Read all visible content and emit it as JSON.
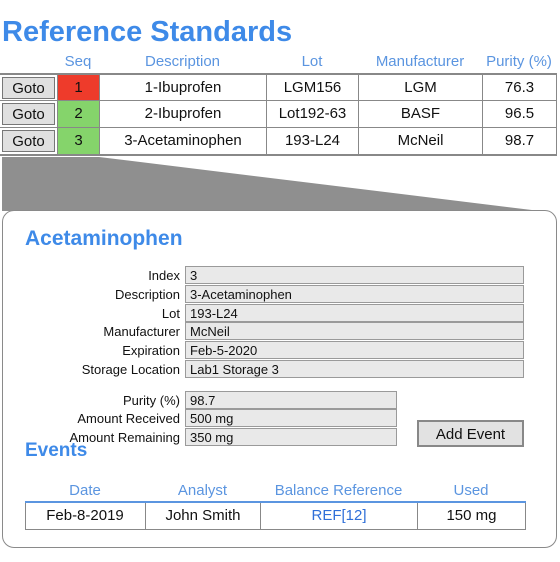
{
  "page_title": "Reference Standards",
  "table": {
    "columns": [
      "Seq",
      "Description",
      "Lot",
      "Manufacturer",
      "Purity (%)"
    ],
    "goto_label": "Goto",
    "rows": [
      {
        "seq": "1",
        "description": "1-Ibuprofen",
        "lot": "LGM156",
        "manufacturer": "LGM",
        "purity": "76.3",
        "status_color": "#ee3b2b"
      },
      {
        "seq": "2",
        "description": "2-Ibuprofen",
        "lot": "Lot192-63",
        "manufacturer": "BASF",
        "purity": "96.5",
        "status_color": "#85d46b"
      },
      {
        "seq": "3",
        "description": "3-Acetaminophen",
        "lot": "193-L24",
        "manufacturer": "McNeil",
        "purity": "98.7",
        "status_color": "#85d46b"
      }
    ]
  },
  "detail": {
    "title": "Acetaminophen",
    "fields": [
      {
        "label": "Index",
        "value": "3"
      },
      {
        "label": "Description",
        "value": "3-Acetaminophen"
      },
      {
        "label": "Lot",
        "value": "193-L24"
      },
      {
        "label": "Manufacturer",
        "value": "McNeil"
      },
      {
        "label": "Expiration",
        "value": "Feb-5-2020"
      },
      {
        "label": "Storage Location",
        "value": "Lab1 Storage 3"
      }
    ],
    "amounts": [
      {
        "label": "Purity (%)",
        "value": "98.7"
      },
      {
        "label": "Amount Received",
        "value": "500 mg"
      },
      {
        "label": "Amount Remaining",
        "value": "350 mg"
      }
    ],
    "add_event_label": "Add Event"
  },
  "events": {
    "title": "Events",
    "columns": [
      "Date",
      "Analyst",
      "Balance Reference",
      "Used"
    ],
    "rows": [
      {
        "date": "Feb-8-2019",
        "analyst": "John Smith",
        "balance_reference": "REF[12]",
        "used": "150 mg"
      }
    ]
  },
  "colors": {
    "accent": "#3e8ae8",
    "header_text": "#5b95e0",
    "status_red": "#ee3b2b",
    "status_green": "#85d46b",
    "link": "#2f6fd8"
  }
}
